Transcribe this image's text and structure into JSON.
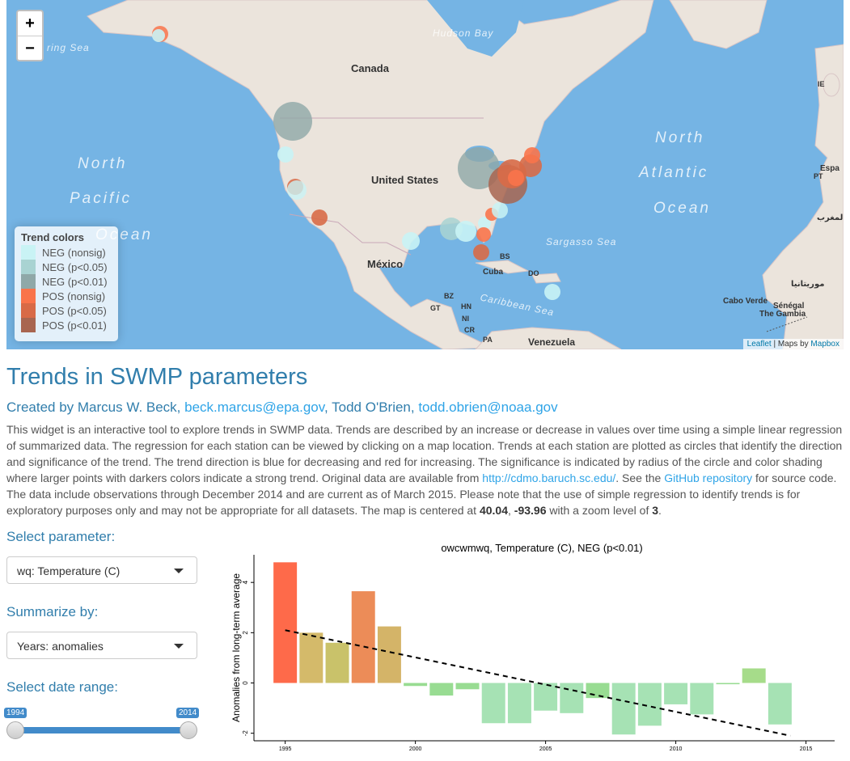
{
  "map": {
    "zoom_in": "+",
    "zoom_out": "−",
    "labels": {
      "bering_sea": "ring Sea",
      "hudson_bay": "Hudson Bay",
      "canada": "Canada",
      "united_states": "United States",
      "mexico": "México",
      "north_pacific_1": "North",
      "north_pacific_2": "Pacific",
      "north_pacific_3": "Ocean",
      "north_atlantic_1": "North",
      "north_atlantic_2": "Atlantic",
      "north_atlantic_3": "Ocean",
      "sargasso_sea": "Sargasso Sea",
      "caribbean_sea": "Caribbean Sea",
      "venezuela": "Venezuela",
      "cuba": "Cuba",
      "bs": "BS",
      "do": "DO",
      "bz": "BZ",
      "gt": "GT",
      "hn": "HN",
      "ni": "NI",
      "cr": "CR",
      "pa": "PA",
      "ie": "IE",
      "pt": "PT",
      "espa": "Espa",
      "morocco": "المغرب",
      "mauritania": "موريتانيا",
      "cabo_verde": "Cabo Verde",
      "senegal": "Sénégal",
      "gambia": "The Gambia"
    },
    "legend": {
      "title": "Trend colors",
      "items": [
        {
          "label": "NEG (nonsig)",
          "color": "#c9f3f5"
        },
        {
          "label": "NEG (p<0.05)",
          "color": "#a9d3d2"
        },
        {
          "label": "NEG (p<0.01)",
          "color": "#8fa8a8"
        },
        {
          "label": "POS (nonsig)",
          "color": "#f9744b"
        },
        {
          "label": "POS (p<0.05)",
          "color": "#d86a47"
        },
        {
          "label": "POS (p<0.01)",
          "color": "#a86550"
        }
      ]
    },
    "attribution": {
      "leaflet": "Leaflet",
      "sep": " | Maps by ",
      "mapbox": "Mapbox"
    }
  },
  "page": {
    "title": "Trends in SWMP parameters",
    "byline_prefix": "Created by Marcus W. Beck, ",
    "email1": "beck.marcus@epa.gov",
    "byline_mid": ", Todd O'Brien, ",
    "email2": "todd.obrien@noaa.gov",
    "desc_1": "This widget is an interactive tool to explore trends in SWMP data. Trends are described by an increase or decrease in values over time using a simple linear regression of summarized data. The regression for each station can be viewed by clicking on a map location. Trends at each station are plotted as circles that identify the direction and significance of the trend. The trend direction is blue for decreasing and red for increasing. The significance is indicated by radius of the circle and color shading where larger points with darkers colors indicate a strong trend. Original data are available from ",
    "link_cdmo": "http://cdmo.baruch.sc.edu/",
    "desc_2": ". See the ",
    "link_github": "GitHub repository",
    "desc_3": " for source code. The data include observations through December 2014 and are current as of March 2015. Please note that the use of simple regression to identify trends is for exploratory purposes only and may not be appropriate for all datasets. The map is centered at ",
    "lat": "40.04",
    "comma": ", ",
    "lon": "-93.96",
    "desc_4": " with a zoom level of ",
    "zoom": "3",
    "desc_5": "."
  },
  "controls": {
    "parameter_label": "Select parameter:",
    "parameter_value": "wq: Temperature (C)",
    "summarize_label": "Summarize by:",
    "summarize_value": "Years: anomalies",
    "daterange_label": "Select date range:",
    "date_min": "1994",
    "date_max": "2014",
    "range_start_fraction": 0,
    "range_end_fraction": 1
  },
  "chart_data": {
    "type": "bar",
    "title": "owcwmwq, Temperature (C), NEG (p<0.01)",
    "xlabel": "",
    "ylabel": "Anomalies from long-term average",
    "x": [
      1995,
      1996,
      1997,
      1998,
      1999,
      2000,
      2001,
      2002,
      2003,
      2004,
      2005,
      2006,
      2007,
      2008,
      2009,
      2010,
      2011,
      2012,
      2013,
      2014
    ],
    "values": [
      4.8,
      2.0,
      1.6,
      3.65,
      2.25,
      -0.12,
      -0.5,
      -0.25,
      -1.6,
      -1.6,
      -1.1,
      -1.2,
      -0.6,
      -2.05,
      -1.7,
      -0.85,
      -1.25,
      -0.05,
      0.58,
      -1.65
    ],
    "bar_colors": [
      "#fe6a4a",
      "#d4ba6a",
      "#c9c26a",
      "#ec8c58",
      "#d4b468",
      "#98dc92",
      "#98dc92",
      "#98dc92",
      "#a6e2b4",
      "#a6e2b4",
      "#a6e2b4",
      "#a6e2b4",
      "#98dc92",
      "#a6e2b4",
      "#a6e2b4",
      "#a6e2b4",
      "#a6e2b4",
      "#98dc92",
      "#a6dc8a",
      "#a6e2b4"
    ],
    "trend_line": {
      "x": [
        1995,
        2014.4
      ],
      "y": [
        2.1,
        -2.1
      ]
    },
    "xticks": [
      1995,
      2000,
      2005,
      2010,
      2015
    ],
    "yticks": [
      -2,
      0,
      2,
      4
    ],
    "xlim": [
      1993.8,
      2016.1
    ],
    "ylim": [
      -2.3,
      5.1
    ],
    "grid": false,
    "legend": "none"
  }
}
